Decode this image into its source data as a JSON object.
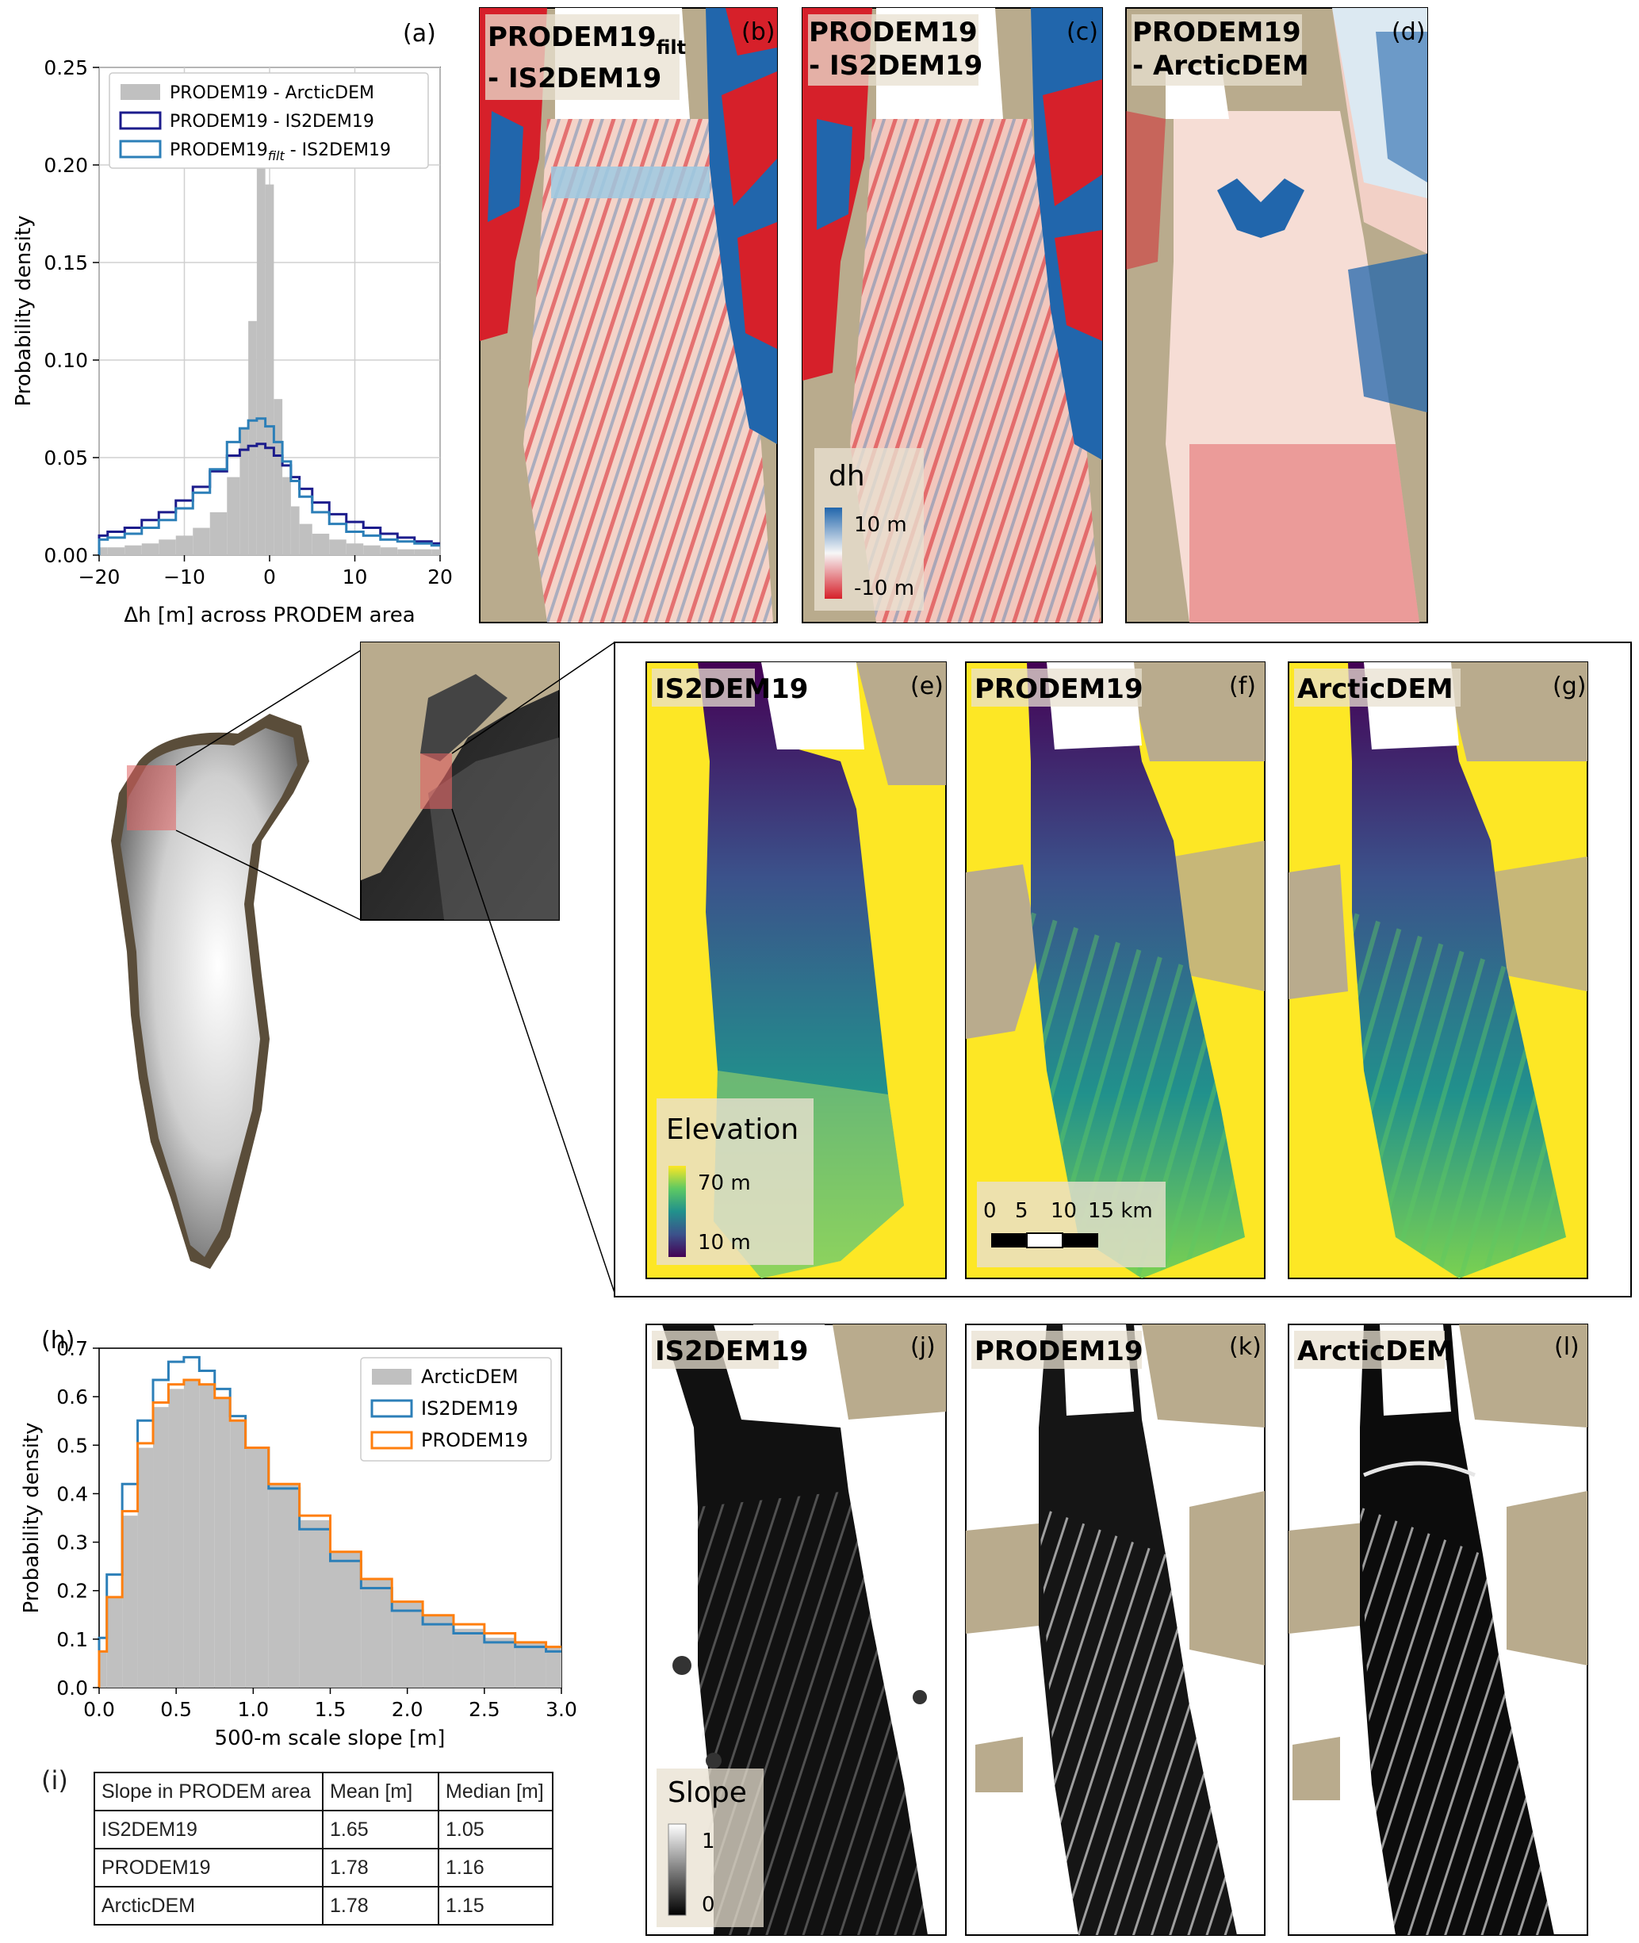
{
  "panels": {
    "a": {
      "label": "(a)"
    },
    "b": {
      "label": "(b)"
    },
    "c": {
      "label": "(c)"
    },
    "d": {
      "label": "(d)"
    },
    "e": {
      "label": "(e)"
    },
    "f": {
      "label": "(f)"
    },
    "g": {
      "label": "(g)"
    },
    "h": {
      "label": "(h)"
    },
    "i": {
      "label": "(i)"
    },
    "j": {
      "label": "(j)"
    },
    "k": {
      "label": "(k)"
    },
    "l": {
      "label": "(l)"
    }
  },
  "map_titles": {
    "b_line1": "PRODEM19",
    "b_sub": "filt",
    "b_line2": "- IS2DEM19",
    "c_line1": "PRODEM19",
    "c_line2": "- IS2DEM19",
    "d_line1": "PRODEM19",
    "d_line2": "- ArcticDEM",
    "e": "IS2DEM19",
    "f": "PRODEM19",
    "g": "ArcticDEM",
    "j": "IS2DEM19",
    "k": "PRODEM19",
    "l": "ArcticDEM"
  },
  "colorbars": {
    "dh": {
      "title": "dh",
      "top": "10 m",
      "bottom": "-10 m"
    },
    "elevation": {
      "title": "Elevation",
      "top": "70 m",
      "bottom": "10 m"
    },
    "slope": {
      "title": "Slope",
      "top": "1",
      "bottom": "0"
    }
  },
  "scalebar": {
    "ticks": [
      "0",
      "5",
      "10",
      "15 km"
    ]
  },
  "colors": {
    "land": "#b9ab8d",
    "dh_pos": "#2166ac",
    "dh_neg": "#d6202a",
    "viridis_low": "#440154",
    "viridis_high": "#fde725",
    "series_navy": "#1c1c8c",
    "series_blue": "#2c7fb8",
    "series_orange": "#ff7f0e",
    "hist_gray": "#c0c0c0"
  },
  "chart_data": [
    {
      "type": "histogram",
      "panel": "a",
      "xlabel": "Δh [m] across PRODEM area",
      "ylabel": "Probability density",
      "xlim": [
        -20,
        20
      ],
      "ylim": [
        0,
        0.25
      ],
      "xticks": [
        "−20",
        "−10",
        "0",
        "10",
        "20"
      ],
      "yticks": [
        "0.00",
        "0.05",
        "0.10",
        "0.15",
        "0.20",
        "0.25"
      ],
      "grid": true,
      "legend_position": "top-left",
      "x": [
        -20,
        -18,
        -16,
        -14,
        -12,
        -10,
        -8,
        -6,
        -4,
        -3,
        -2,
        -1,
        0,
        1,
        2,
        3,
        4,
        6,
        8,
        10,
        12,
        14,
        16,
        18,
        20
      ],
      "series": [
        {
          "name": "PRODEM19 - ArcticDEM",
          "style": "filled",
          "values": [
            0.004,
            0.004,
            0.005,
            0.006,
            0.008,
            0.01,
            0.014,
            0.022,
            0.04,
            0.065,
            0.12,
            0.21,
            0.19,
            0.08,
            0.04,
            0.025,
            0.016,
            0.011,
            0.008,
            0.006,
            0.005,
            0.004,
            0.003,
            0.003,
            0.003
          ]
        },
        {
          "name": "PRODEM19 - IS2DEM19",
          "style": "step",
          "values": [
            0.01,
            0.012,
            0.014,
            0.018,
            0.022,
            0.028,
            0.035,
            0.043,
            0.051,
            0.054,
            0.056,
            0.057,
            0.055,
            0.051,
            0.046,
            0.04,
            0.034,
            0.027,
            0.021,
            0.017,
            0.014,
            0.011,
            0.009,
            0.007,
            0.006
          ]
        },
        {
          "name": "PRODEM19filt - IS2DEM19",
          "style": "step",
          "values": [
            0.008,
            0.009,
            0.011,
            0.014,
            0.018,
            0.024,
            0.032,
            0.044,
            0.058,
            0.065,
            0.069,
            0.07,
            0.066,
            0.058,
            0.048,
            0.038,
            0.03,
            0.022,
            0.016,
            0.012,
            0.01,
            0.008,
            0.007,
            0.006,
            0.005
          ]
        }
      ]
    },
    {
      "type": "histogram",
      "panel": "h",
      "xlabel": "500-m scale slope [m]",
      "ylabel": "Probability density",
      "xlim": [
        0,
        3
      ],
      "ylim": [
        0,
        0.75
      ],
      "xticks": [
        "0.0",
        "0.5",
        "1.0",
        "1.5",
        "2.0",
        "2.5",
        "3.0"
      ],
      "yticks": [
        "0.0",
        "0.1",
        "0.2",
        "0.3",
        "0.4",
        "0.5",
        "0.6",
        "0.7"
      ],
      "grid": false,
      "legend_position": "top-right",
      "x": [
        0,
        0.1,
        0.2,
        0.3,
        0.4,
        0.5,
        0.6,
        0.7,
        0.8,
        0.9,
        1.0,
        1.2,
        1.4,
        1.6,
        1.8,
        2.0,
        2.2,
        2.4,
        2.6,
        2.8,
        3.0
      ],
      "series": [
        {
          "name": "ArcticDEM",
          "style": "filled",
          "values": [
            0.08,
            0.2,
            0.38,
            0.53,
            0.62,
            0.66,
            0.68,
            0.67,
            0.64,
            0.59,
            0.53,
            0.45,
            0.37,
            0.3,
            0.24,
            0.19,
            0.16,
            0.13,
            0.11,
            0.1,
            0.09
          ]
        },
        {
          "name": "IS2DEM19",
          "style": "step",
          "values": [
            0.11,
            0.25,
            0.45,
            0.59,
            0.68,
            0.72,
            0.73,
            0.7,
            0.66,
            0.6,
            0.53,
            0.44,
            0.35,
            0.28,
            0.22,
            0.17,
            0.14,
            0.12,
            0.1,
            0.09,
            0.08
          ]
        },
        {
          "name": "PRODEM19",
          "style": "step",
          "values": [
            0.08,
            0.2,
            0.39,
            0.54,
            0.63,
            0.67,
            0.68,
            0.67,
            0.64,
            0.59,
            0.53,
            0.45,
            0.38,
            0.3,
            0.24,
            0.19,
            0.16,
            0.14,
            0.12,
            0.1,
            0.09
          ]
        }
      ]
    },
    {
      "type": "table",
      "panel": "i",
      "columns": [
        "Slope in PRODEM area",
        "Mean [m]",
        "Median [m]"
      ],
      "rows": [
        [
          "IS2DEM19",
          "1.65",
          "1.05"
        ],
        [
          "PRODEM19",
          "1.78",
          "1.16"
        ],
        [
          "ArcticDEM",
          "1.78",
          "1.15"
        ]
      ]
    }
  ]
}
